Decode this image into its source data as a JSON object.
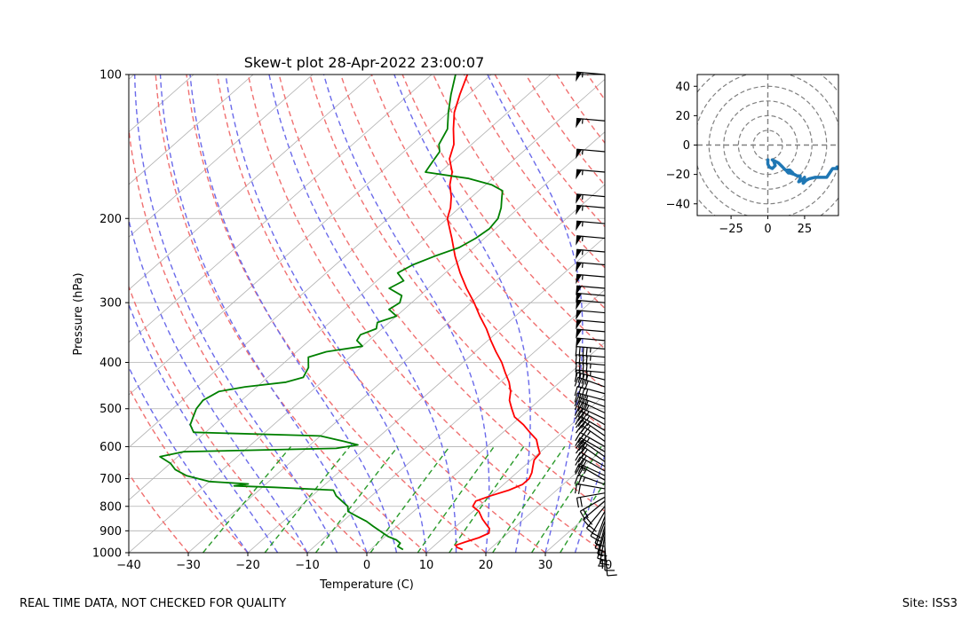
{
  "chart_data": [
    {
      "type": "line",
      "subtype": "skew-t",
      "title": "Skew-t plot 28-Apr-2022 23:00:07",
      "xlabel": "Temperature (C)",
      "ylabel": "Pressure (hPa)",
      "xlim": [
        -40,
        40
      ],
      "ylim": [
        1000,
        100
      ],
      "y_scale": "log",
      "x_ticks": [
        -40,
        -30,
        -20,
        -10,
        0,
        10,
        20,
        30,
        40
      ],
      "y_ticks": [
        100,
        200,
        300,
        400,
        500,
        600,
        700,
        800,
        900,
        1000
      ],
      "series": [
        {
          "role": "temperature",
          "color": "#ff0000",
          "pressure": [
            985,
            975,
            965,
            950,
            930,
            910,
            890,
            870,
            850,
            820,
            800,
            780,
            760,
            740,
            720,
            700,
            680,
            660,
            640,
            620,
            600,
            580,
            560,
            540,
            520,
            500,
            480,
            460,
            440,
            420,
            400,
            380,
            360,
            340,
            320,
            300,
            280,
            260,
            240,
            220,
            200,
            190,
            180,
            170,
            160,
            150,
            140,
            130,
            120,
            110,
            100
          ],
          "temperature": [
            15.5,
            14.2,
            13.5,
            14.5,
            16.0,
            16.8,
            16.0,
            14.5,
            13.0,
            11.0,
            9.0,
            8.5,
            10.0,
            12.0,
            13.2,
            13.2,
            12.5,
            11.5,
            10.5,
            10.2,
            8.6,
            7.0,
            4.5,
            2.0,
            -1.0,
            -3.0,
            -5.0,
            -6.5,
            -8.5,
            -11.0,
            -13.5,
            -16.5,
            -19.5,
            -22.5,
            -26.0,
            -29.5,
            -33.5,
            -37.5,
            -41.5,
            -45.5,
            -50.0,
            -51.5,
            -53.5,
            -56.0,
            -58.0,
            -61.0,
            -63.0,
            -66.0,
            -69.0,
            -71.5,
            -74.0
          ]
        },
        {
          "role": "dewpoint",
          "color": "#008000",
          "pressure": [
            985,
            970,
            955,
            940,
            925,
            900,
            880,
            860,
            840,
            820,
            800,
            780,
            760,
            740,
            730,
            725,
            718,
            710,
            690,
            670,
            650,
            630,
            615,
            605,
            595,
            585,
            570,
            560,
            540,
            520,
            500,
            480,
            470,
            460,
            450,
            440,
            430,
            420,
            410,
            400,
            390,
            380,
            370,
            360,
            350,
            340,
            330,
            320,
            310,
            300,
            290,
            280,
            270,
            260,
            250,
            240,
            230,
            220,
            210,
            200,
            190,
            180,
            175,
            170,
            165,
            160,
            155,
            150,
            145,
            140,
            130,
            120,
            110,
            100
          ],
          "temperature": [
            5.5,
            4.0,
            3.8,
            2.5,
            0.5,
            -2.0,
            -4.0,
            -6.0,
            -8.5,
            -11.0,
            -12.0,
            -14.0,
            -16.0,
            -17.5,
            -28.0,
            -35.0,
            -33.0,
            -40.0,
            -45.0,
            -48.0,
            -50.0,
            -53.0,
            -50.0,
            -25.0,
            -22.0,
            -25.0,
            -30.0,
            -52.0,
            -54.0,
            -55.0,
            -56.0,
            -56.5,
            -56.0,
            -55.5,
            -52.0,
            -46.0,
            -44.0,
            -44.5,
            -45.0,
            -46.0,
            -47.0,
            -45.0,
            -40.0,
            -42.0,
            -42.5,
            -41.0,
            -42.0,
            -40.0,
            -42.5,
            -42.0,
            -43.0,
            -46.5,
            -45.5,
            -48.0,
            -47.0,
            -45.0,
            -42.5,
            -41.5,
            -41.0,
            -41.5,
            -43.0,
            -45.0,
            -46.0,
            -49.0,
            -54.0,
            -62.5,
            -63.0,
            -63.5,
            -64.0,
            -65.5,
            -67.0,
            -70.0,
            -73.0,
            -76.0
          ]
        }
      ],
      "wind_barbs_pressure": [
        100,
        125,
        145,
        160,
        180,
        190,
        205,
        220,
        235,
        250,
        265,
        280,
        290,
        300,
        315,
        330,
        345,
        360,
        375,
        390,
        405,
        420,
        435,
        450,
        465,
        480,
        495,
        510,
        525,
        540,
        555,
        570,
        585,
        600,
        615,
        630,
        645,
        660,
        675,
        690,
        705,
        720,
        735,
        750,
        765,
        780,
        800,
        820,
        840,
        860,
        880,
        900,
        920,
        950,
        975
      ],
      "wind_barbs_direction_deg": [
        275,
        275,
        275,
        275,
        275,
        275,
        275,
        275,
        275,
        275,
        275,
        275,
        275,
        275,
        275,
        275,
        275,
        275,
        275,
        275,
        275,
        275,
        285,
        290,
        285,
        285,
        290,
        295,
        295,
        300,
        300,
        305,
        305,
        300,
        300,
        305,
        305,
        300,
        300,
        295,
        300,
        290,
        280,
        260,
        240,
        230,
        220,
        210,
        200,
        200,
        195,
        195,
        190,
        180,
        175
      ],
      "wind_barbs_speed_kt": [
        55,
        55,
        55,
        55,
        55,
        55,
        55,
        55,
        55,
        55,
        55,
        50,
        50,
        50,
        50,
        50,
        50,
        50,
        45,
        45,
        45,
        45,
        40,
        40,
        40,
        40,
        40,
        35,
        35,
        35,
        35,
        35,
        35,
        35,
        30,
        30,
        30,
        30,
        30,
        25,
        25,
        25,
        20,
        20,
        20,
        20,
        20,
        20,
        15,
        15,
        15,
        15,
        15,
        10,
        10
      ],
      "guides": {
        "isotherms": "gray solid, skewed",
        "dry_adiabats": "red dashed",
        "moist_adiabats": "blue dashed",
        "mixing_ratio_lines": "green dashed"
      }
    },
    {
      "type": "line",
      "subtype": "hodograph",
      "xlim": [
        -48,
        48
      ],
      "ylim": [
        -48,
        48
      ],
      "x_ticks": [
        -25,
        0,
        25
      ],
      "y_ticks": [
        -40,
        -20,
        0,
        20,
        40
      ],
      "range_rings": [
        10,
        20,
        30,
        40,
        50,
        60
      ],
      "color": "#1f77b4",
      "u": [
        0,
        0,
        1,
        3,
        5,
        4,
        3,
        7,
        10,
        12,
        15,
        17,
        14,
        13,
        15,
        18,
        20,
        22,
        22,
        21,
        23,
        25,
        24,
        26,
        28,
        32,
        36,
        40,
        44,
        47,
        47,
        48
      ],
      "v": [
        -10,
        -13,
        -15,
        -16,
        -14,
        -11,
        -10,
        -12,
        -15,
        -17,
        -17,
        -19,
        -19,
        -18,
        -19,
        -20,
        -21,
        -21,
        -23,
        -25,
        -24,
        -22,
        -26,
        -24,
        -23,
        -22,
        -22,
        -22,
        -16,
        -16,
        -15,
        -15
      ]
    }
  ],
  "footer": {
    "left": "REAL TIME DATA, NOT CHECKED FOR QUALITY",
    "right": "Site: ISS3"
  }
}
